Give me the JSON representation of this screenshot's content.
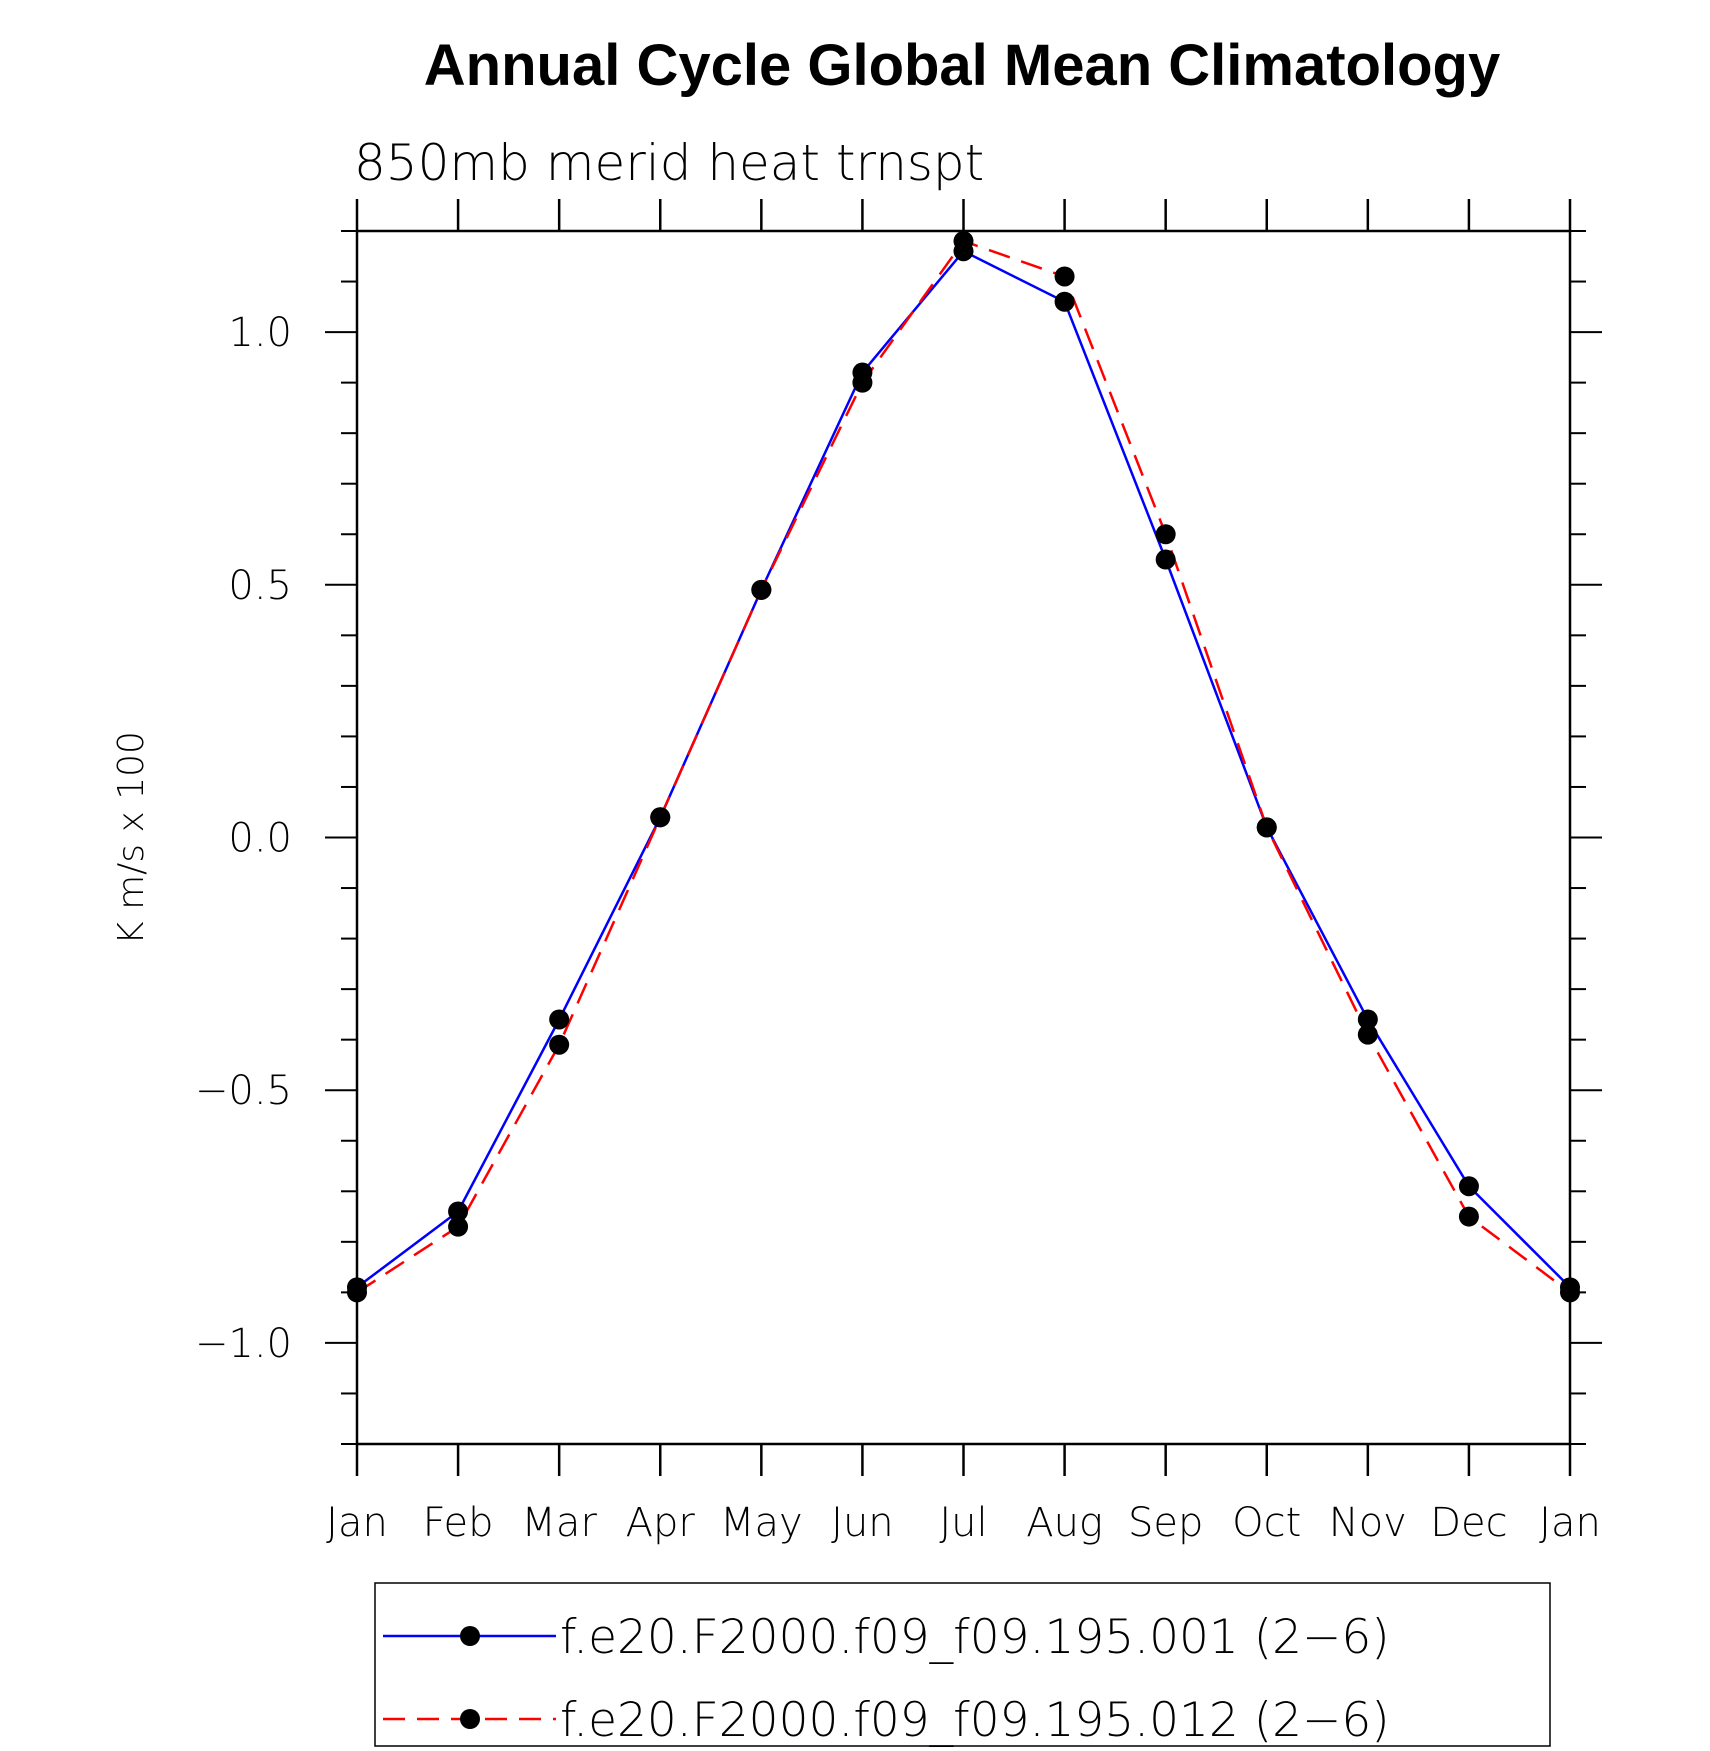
{
  "chart_data": {
    "type": "line",
    "title": "Annual Cycle Global Mean Climatology",
    "subtitle": "850mb merid heat trnspt",
    "xlabel": "",
    "ylabel": "K m/s x 100",
    "categories": [
      "Jan",
      "Feb",
      "Mar",
      "Apr",
      "May",
      "Jun",
      "Jul",
      "Aug",
      "Sep",
      "Oct",
      "Nov",
      "Dec",
      "Jan"
    ],
    "ylim": [
      -1.2,
      1.2
    ],
    "yticks": [
      -1.0,
      -0.5,
      0.0,
      0.5,
      1.0
    ],
    "ytick_labels": [
      "−1.0",
      "−0.5",
      "0.0",
      "0.5",
      "1.0"
    ],
    "grid": false,
    "legend_position": "bottom",
    "series": [
      {
        "name": "f.e20.F2000.f09_f09.195.001 (2−6)",
        "color": "#0000ff",
        "line_style": "solid",
        "marker": "filled-circle",
        "values": [
          -0.89,
          -0.74,
          -0.36,
          0.04,
          0.49,
          0.92,
          1.16,
          1.06,
          0.55,
          0.02,
          -0.36,
          -0.69,
          -0.89
        ]
      },
      {
        "name": "f.e20.F2000.f09_f09.195.012 (2−6)",
        "color": "#ff0000",
        "line_style": "dashed",
        "marker": "filled-circle",
        "values": [
          -0.9,
          -0.77,
          -0.41,
          0.04,
          0.49,
          0.9,
          1.18,
          1.11,
          0.6,
          0.02,
          -0.39,
          -0.75,
          -0.9
        ]
      }
    ]
  }
}
